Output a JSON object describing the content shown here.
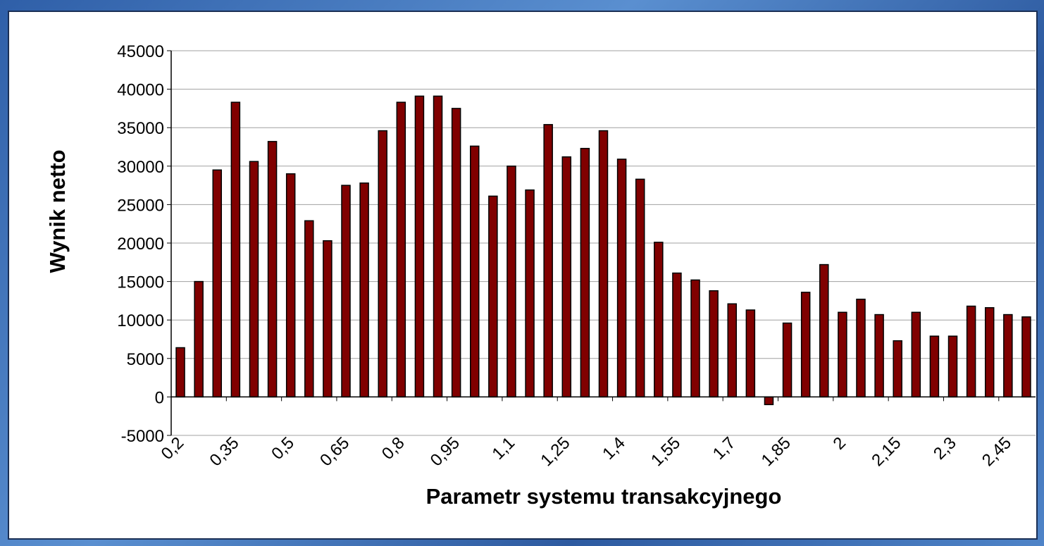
{
  "chart_data": {
    "type": "bar",
    "xlabel": "Parametr systemu transakcyjnego",
    "ylabel": "Wynik netto",
    "categories": [
      "0,2",
      null,
      null,
      "0,35",
      null,
      null,
      "0,5",
      null,
      null,
      "0,65",
      null,
      null,
      "0,8",
      null,
      null,
      "0,95",
      null,
      null,
      "1,1",
      null,
      null,
      "1,25",
      null,
      null,
      "1,4",
      null,
      null,
      "1,55",
      null,
      null,
      "1,7",
      null,
      null,
      "1,85",
      null,
      null,
      "2",
      null,
      null,
      "2,15",
      null,
      null,
      "2,3",
      null,
      null,
      "2,45",
      null
    ],
    "values": [
      6400,
      15000,
      29500,
      38300,
      30600,
      33200,
      29000,
      22900,
      20300,
      27500,
      27800,
      34600,
      38300,
      39100,
      39100,
      37500,
      32600,
      26100,
      30000,
      26900,
      35400,
      31200,
      32300,
      34600,
      30900,
      28300,
      20100,
      16100,
      15200,
      13800,
      12100,
      11300,
      -1000,
      9600,
      13600,
      17200,
      11000,
      12700,
      10700,
      7300,
      11000,
      7900,
      7900,
      11800,
      11600,
      10700,
      10400
    ],
    "color": "#800000",
    "ylim": [
      -5000,
      45000
    ],
    "yticks": [
      -5000,
      0,
      5000,
      10000,
      15000,
      20000,
      25000,
      30000,
      35000,
      40000,
      45000
    ],
    "grid": true
  }
}
